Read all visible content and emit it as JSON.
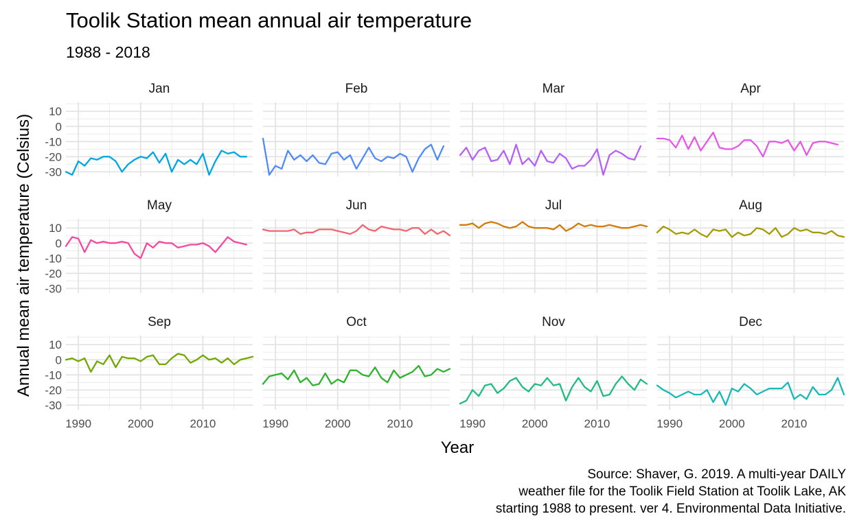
{
  "chart_data": {
    "type": "line",
    "title": "Toolik Station mean annual air temperature",
    "subtitle": "1988 - 2018",
    "xlabel": "Year",
    "ylabel": "Annual mean air temperature (Celsius)",
    "caption": [
      "Source: Shaver, G. 2019. A multi-year DAILY",
      "weather file for the Toolik Field Station at Toolik Lake, AK",
      "starting 1988 to present. ver 4. Environmental Data Initiative."
    ],
    "xlim": [
      1988,
      2018
    ],
    "ylim": [
      -33,
      16
    ],
    "x_ticks": [
      "1990",
      "2000",
      "2010"
    ],
    "y_ticks": [
      "10",
      "0",
      "-10",
      "-20",
      "-30"
    ],
    "grid": true,
    "legend": "none",
    "x": [
      1988,
      1989,
      1990,
      1991,
      1992,
      1993,
      1994,
      1995,
      1996,
      1997,
      1998,
      1999,
      2000,
      2001,
      2002,
      2003,
      2004,
      2005,
      2006,
      2007,
      2008,
      2009,
      2010,
      2011,
      2012,
      2013,
      2014,
      2015,
      2016,
      2017,
      2018
    ],
    "series": [
      {
        "name": "Jan",
        "color": "#00a5e3",
        "values": [
          -30,
          -32,
          -23,
          -26,
          -21,
          -22,
          -20,
          -20,
          -23,
          -30,
          -25,
          -22,
          -20,
          -21,
          -17,
          -24,
          -18,
          -30,
          -22,
          -25,
          -22,
          -25,
          -18,
          -32,
          -23,
          -16,
          -18,
          -17,
          -20,
          -20,
          null
        ]
      },
      {
        "name": "Feb",
        "color": "#4f8af7",
        "values": [
          -8,
          -32,
          -26,
          -28,
          -16,
          -22,
          -19,
          -23,
          -19,
          -24,
          -25,
          -18,
          -17,
          -22,
          -19,
          -28,
          -21,
          -14,
          -21,
          -23,
          -20,
          -21,
          -18,
          -20,
          -30,
          -21,
          -15,
          -12,
          -22,
          -13,
          null
        ]
      },
      {
        "name": "Mar",
        "color": "#b65ff5",
        "values": [
          -19,
          -14,
          -22,
          -16,
          -14,
          -23,
          -22,
          -16,
          -25,
          -12,
          -25,
          -21,
          -26,
          -16,
          -23,
          -24,
          -18,
          -21,
          -28,
          -26,
          -26,
          -22,
          -15,
          -32,
          -19,
          -16,
          -18,
          -21,
          -22,
          -13,
          null
        ]
      },
      {
        "name": "Apr",
        "color": "#e757e7",
        "values": [
          -8,
          -8,
          -9,
          -14,
          -6,
          -15,
          -7,
          -16,
          -10,
          -4,
          -14,
          -15,
          -15,
          -13,
          -9,
          -9,
          -13,
          -20,
          -10,
          -10,
          -11,
          -9,
          -16,
          -10,
          -19,
          -11,
          -10,
          -10,
          -11,
          -12,
          null
        ]
      },
      {
        "name": "May",
        "color": "#f6489f",
        "values": [
          -2,
          4,
          3,
          -6,
          2,
          0,
          1,
          0,
          0,
          1,
          0,
          -7,
          -10,
          0,
          -3,
          1,
          0,
          0,
          -3,
          -2,
          -1,
          -1,
          0,
          -2,
          -6,
          -1,
          4,
          1,
          0,
          -1,
          null
        ]
      },
      {
        "name": "Jun",
        "color": "#f4646c",
        "values": [
          9,
          8,
          8,
          8,
          8,
          9,
          6,
          7,
          7,
          9,
          9,
          9,
          8,
          7,
          6,
          8,
          12,
          9,
          8,
          11,
          10,
          9,
          9,
          8,
          10,
          10,
          6,
          9,
          6,
          8,
          5
        ]
      },
      {
        "name": "Jul",
        "color": "#d37a06",
        "values": [
          12,
          12,
          13,
          10,
          13,
          14,
          13,
          11,
          10,
          11,
          14,
          11,
          10,
          10,
          10,
          9,
          12,
          8,
          10,
          13,
          11,
          12,
          11,
          11,
          12,
          11,
          10,
          10,
          11,
          12,
          11
        ]
      },
      {
        "name": "Aug",
        "color": "#a79a00",
        "values": [
          7,
          11,
          9,
          6,
          7,
          6,
          9,
          6,
          4,
          9,
          8,
          9,
          4,
          7,
          5,
          6,
          10,
          9,
          6,
          10,
          4,
          6,
          10,
          8,
          9,
          7,
          7,
          6,
          8,
          5,
          4
        ]
      },
      {
        "name": "Sep",
        "color": "#70a800",
        "values": [
          0,
          1,
          -1,
          1,
          -8,
          -1,
          -3,
          3,
          -5,
          2,
          1,
          1,
          -1,
          2,
          3,
          -3,
          -3,
          1,
          4,
          3,
          -2,
          0,
          3,
          0,
          1,
          -2,
          1,
          -3,
          0,
          1,
          2
        ]
      },
      {
        "name": "Oct",
        "color": "#2cb22c",
        "values": [
          -16,
          -11,
          -10,
          -9,
          -13,
          -7,
          -15,
          -12,
          -17,
          -16,
          -9,
          -16,
          -13,
          -15,
          -7,
          -7,
          -10,
          -11,
          -5,
          -12,
          -15,
          -7,
          -12,
          -10,
          -8,
          -4,
          -11,
          -10,
          -6,
          -8,
          -6
        ]
      },
      {
        "name": "Nov",
        "color": "#1ebc83",
        "values": [
          -29,
          -27,
          -20,
          -24,
          -17,
          -16,
          -22,
          -19,
          -14,
          -12,
          -18,
          -21,
          -16,
          -17,
          -12,
          -17,
          -16,
          -27,
          -18,
          -12,
          -18,
          -21,
          -14,
          -24,
          -23,
          -16,
          -11,
          -16,
          -20,
          -13,
          -16
        ]
      },
      {
        "name": "Dec",
        "color": "#17b8b8",
        "values": [
          -17,
          -20,
          -22,
          -25,
          -23,
          -21,
          -23,
          -23,
          -20,
          -28,
          -21,
          -30,
          -19,
          -21,
          -16,
          -19,
          -23,
          -21,
          -19,
          -19,
          -19,
          -15,
          -26,
          -23,
          -26,
          -18,
          -23,
          -23,
          -20,
          -12,
          -23
        ]
      }
    ]
  }
}
